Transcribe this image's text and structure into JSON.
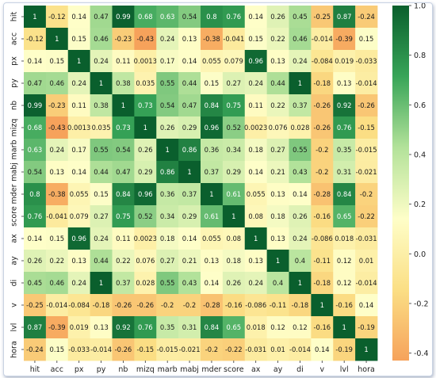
{
  "chart_data": {
    "type": "heatmap",
    "title": "",
    "xlabel": "",
    "ylabel": "",
    "labels": [
      "hit",
      "acc",
      "px",
      "py",
      "nb",
      "mizq",
      "marb",
      "mabj",
      "mder",
      "score",
      "ax",
      "ay",
      "di",
      "v",
      "lvl",
      "hora"
    ],
    "matrix": [
      [
        1,
        "-0.12",
        "0.14",
        "0.47",
        "0.99",
        "0.68",
        "0.63",
        "0.54",
        "0.8",
        "0.76",
        "0.14",
        "0.26",
        "0.45",
        "-0.25",
        "0.87",
        "-0.24"
      ],
      [
        "-0.12",
        1,
        "0.15",
        "0.46",
        "-0.23",
        "-0.43",
        "0.24",
        "0.13",
        "-0.38",
        "-0.041",
        "0.15",
        "0.22",
        "0.46",
        "-0.014",
        "-0.39",
        "0.15"
      ],
      [
        "0.14",
        "0.15",
        1,
        "0.24",
        "0.11",
        "0.0013",
        "0.17",
        "0.14",
        "0.055",
        "0.079",
        "0.96",
        "0.13",
        "0.24",
        "-0.084",
        "0.019",
        "-0.033"
      ],
      [
        "0.47",
        "0.46",
        "0.24",
        1,
        "0.38",
        "0.035",
        "0.55",
        "0.44",
        "0.15",
        "0.27",
        "0.24",
        "0.44",
        1,
        "-0.18",
        "0.13",
        "-0.014"
      ],
      [
        "0.99",
        "-0.23",
        "0.11",
        "0.38",
        1,
        "0.73",
        "0.54",
        "0.47",
        "0.84",
        "0.75",
        "0.11",
        "0.22",
        "0.37",
        "-0.26",
        "0.92",
        "-0.26"
      ],
      [
        "0.68",
        "-0.43",
        "0.0013",
        "0.035",
        "0.73",
        1,
        "0.26",
        "0.29",
        "0.96",
        "0.52",
        "0.0023",
        "0.076",
        "0.028",
        "-0.26",
        "0.76",
        "-0.15"
      ],
      [
        "0.63",
        "0.24",
        "0.17",
        "0.55",
        "0.54",
        "0.26",
        1,
        "0.86",
        "0.36",
        "0.34",
        "0.18",
        "0.27",
        "0.55",
        "-0.2",
        "0.35",
        "-0.015"
      ],
      [
        "0.54",
        "0.13",
        "0.14",
        "0.44",
        "0.47",
        "0.29",
        "0.86",
        1,
        "0.37",
        "0.29",
        "0.14",
        "0.21",
        "0.43",
        "-0.2",
        "0.31",
        "-0.021"
      ],
      [
        "0.8",
        "-0.38",
        "0.055",
        "0.15",
        "0.84",
        "0.96",
        "0.36",
        "0.37",
        1,
        "0.61",
        "0.055",
        "0.13",
        "0.14",
        "-0.28",
        "0.84",
        "-0.2"
      ],
      [
        "0.76",
        "-0.041",
        "0.079",
        "0.27",
        "0.75",
        "0.52",
        "0.34",
        "0.29",
        "0.61",
        1,
        "0.08",
        "0.18",
        "0.26",
        "-0.16",
        "0.65",
        "-0.22"
      ],
      [
        "0.14",
        "0.15",
        "0.96",
        "0.24",
        "0.11",
        "0.0023",
        "0.18",
        "0.14",
        "0.055",
        "0.08",
        1,
        "0.13",
        "0.24",
        "-0.086",
        "0.018",
        "-0.031"
      ],
      [
        "0.26",
        "0.22",
        "0.13",
        "0.44",
        "0.22",
        "0.076",
        "0.27",
        "0.21",
        "0.13",
        "0.18",
        "0.13",
        1,
        "0.4",
        "-0.11",
        "0.12",
        "0.01"
      ],
      [
        "0.45",
        "0.46",
        "0.24",
        1,
        "0.37",
        "0.028",
        "0.55",
        "0.43",
        "0.14",
        "0.26",
        "0.24",
        "0.4",
        1,
        "-0.18",
        "0.12",
        "-0.014"
      ],
      [
        "-0.25",
        "-0.014",
        "-0.084",
        "-0.18",
        "-0.26",
        "-0.26",
        "-0.2",
        "-0.2",
        "-0.28",
        "-0.16",
        "-0.086",
        "-0.11",
        "-0.18",
        1,
        "-0.16",
        "0.14"
      ],
      [
        "0.87",
        "-0.39",
        "0.019",
        "0.13",
        "0.92",
        "0.76",
        "0.35",
        "0.31",
        "0.84",
        "0.65",
        "0.018",
        "0.12",
        "0.12",
        "-0.16",
        1,
        "-0.19"
      ],
      [
        "-0.24",
        "0.15",
        "-0.033",
        "-0.014",
        "-0.26",
        "-0.15",
        "-0.015",
        "-0.021",
        "-0.2",
        "-0.22",
        "-0.031",
        "0.01",
        "-0.014",
        "0.14",
        "-0.19",
        1
      ]
    ],
    "colorbar": {
      "vmin": -0.43,
      "vmax": 1.0,
      "ticks": [
        "1.0",
        "0.8",
        "0.6",
        "0.4",
        "0.2",
        "0.0",
        "-0.2",
        "-0.4"
      ],
      "colormap": [
        "#f6a25b",
        "#fbdf85",
        "#fefec8",
        "#b3e29a",
        "#38a558",
        "#0a5f2d"
      ]
    },
    "grid": false,
    "legend": "colorbar-right"
  }
}
